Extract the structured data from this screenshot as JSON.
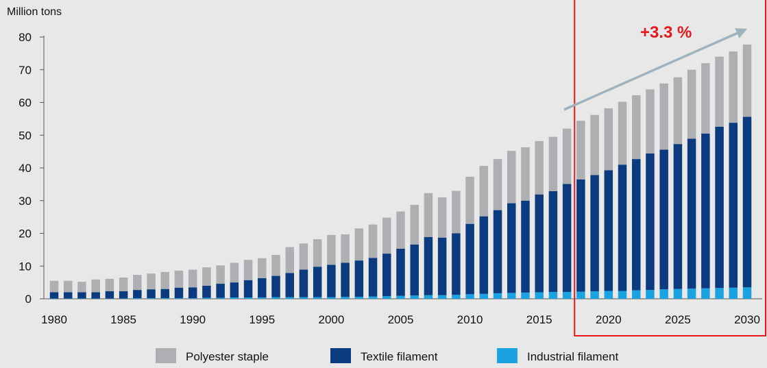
{
  "chart_data": {
    "type": "bar",
    "stacked": true,
    "ylabel": "Million tons",
    "ylim": [
      0,
      80
    ],
    "yticks": [
      0,
      10,
      20,
      30,
      40,
      50,
      60,
      70,
      80
    ],
    "x_tick_labels": [
      "1980",
      "1985",
      "1990",
      "1995",
      "2000",
      "2005",
      "2010",
      "2015",
      "2020",
      "2025",
      "2030"
    ],
    "categories": [
      1980,
      1981,
      1982,
      1983,
      1984,
      1985,
      1986,
      1987,
      1988,
      1989,
      1990,
      1991,
      1992,
      1993,
      1994,
      1995,
      1996,
      1997,
      1998,
      1999,
      2000,
      2001,
      2002,
      2003,
      2004,
      2005,
      2006,
      2007,
      2008,
      2009,
      2010,
      2011,
      2012,
      2013,
      2014,
      2015,
      2016,
      2017,
      2018,
      2019,
      2020,
      2021,
      2022,
      2023,
      2024,
      2025,
      2026,
      2027,
      2028,
      2029,
      2030
    ],
    "series": [
      {
        "name": "Industrial filament",
        "color": "#1aa3e0",
        "values": [
          0.1,
          0.1,
          0.1,
          0.1,
          0.1,
          0.1,
          0.2,
          0.2,
          0.2,
          0.2,
          0.2,
          0.3,
          0.3,
          0.4,
          0.4,
          0.4,
          0.5,
          0.5,
          0.5,
          0.5,
          0.5,
          0.6,
          0.6,
          0.7,
          0.8,
          0.9,
          1.0,
          1.1,
          1.1,
          1.2,
          1.4,
          1.5,
          1.7,
          1.8,
          1.9,
          2.0,
          2.1,
          2.1,
          2.2,
          2.3,
          2.4,
          2.4,
          2.6,
          2.7,
          2.9,
          3.0,
          3.1,
          3.2,
          3.3,
          3.4,
          3.5
        ]
      },
      {
        "name": "Textile filament",
        "color": "#0c3a7e",
        "values": [
          1.9,
          1.9,
          1.9,
          1.9,
          2.2,
          2.2,
          2.5,
          2.7,
          2.8,
          3.2,
          3.3,
          3.7,
          4.3,
          4.6,
          5.3,
          5.9,
          6.5,
          7.4,
          8.4,
          9.3,
          9.9,
          10.4,
          11.1,
          11.8,
          13.0,
          14.4,
          15.6,
          17.8,
          17.6,
          18.8,
          21.5,
          23.7,
          25.4,
          27.4,
          28.1,
          29.9,
          30.8,
          33.0,
          34.3,
          35.5,
          36.9,
          38.6,
          40.1,
          41.7,
          42.7,
          44.3,
          45.8,
          47.3,
          49.3,
          50.4,
          52.1
        ]
      },
      {
        "name": "Polyester staple",
        "color": "#aeafb3",
        "values": [
          3.5,
          3.5,
          3.2,
          3.9,
          3.8,
          4.2,
          4.6,
          4.8,
          5.2,
          5.2,
          5.4,
          5.6,
          5.6,
          6.0,
          6.2,
          6.1,
          6.4,
          7.9,
          8.0,
          8.4,
          9.1,
          8.7,
          9.8,
          10.2,
          11.0,
          11.4,
          12.1,
          13.4,
          12.3,
          13.0,
          14.4,
          15.4,
          15.6,
          16.0,
          16.3,
          16.3,
          16.6,
          16.9,
          17.9,
          18.4,
          18.9,
          19.2,
          19.5,
          19.6,
          20.2,
          20.4,
          21.1,
          21.5,
          21.4,
          21.8,
          22.1
        ]
      }
    ],
    "legend_order": [
      "Polyester staple",
      "Textile filament",
      "Industrial filament"
    ],
    "legend_position": "bottom",
    "annotation": {
      "text": "+3.3 %",
      "color": "#e8161b",
      "arrow_color": "#9fb2bd",
      "highlight_from": 2018,
      "highlight_to": 2030
    }
  }
}
